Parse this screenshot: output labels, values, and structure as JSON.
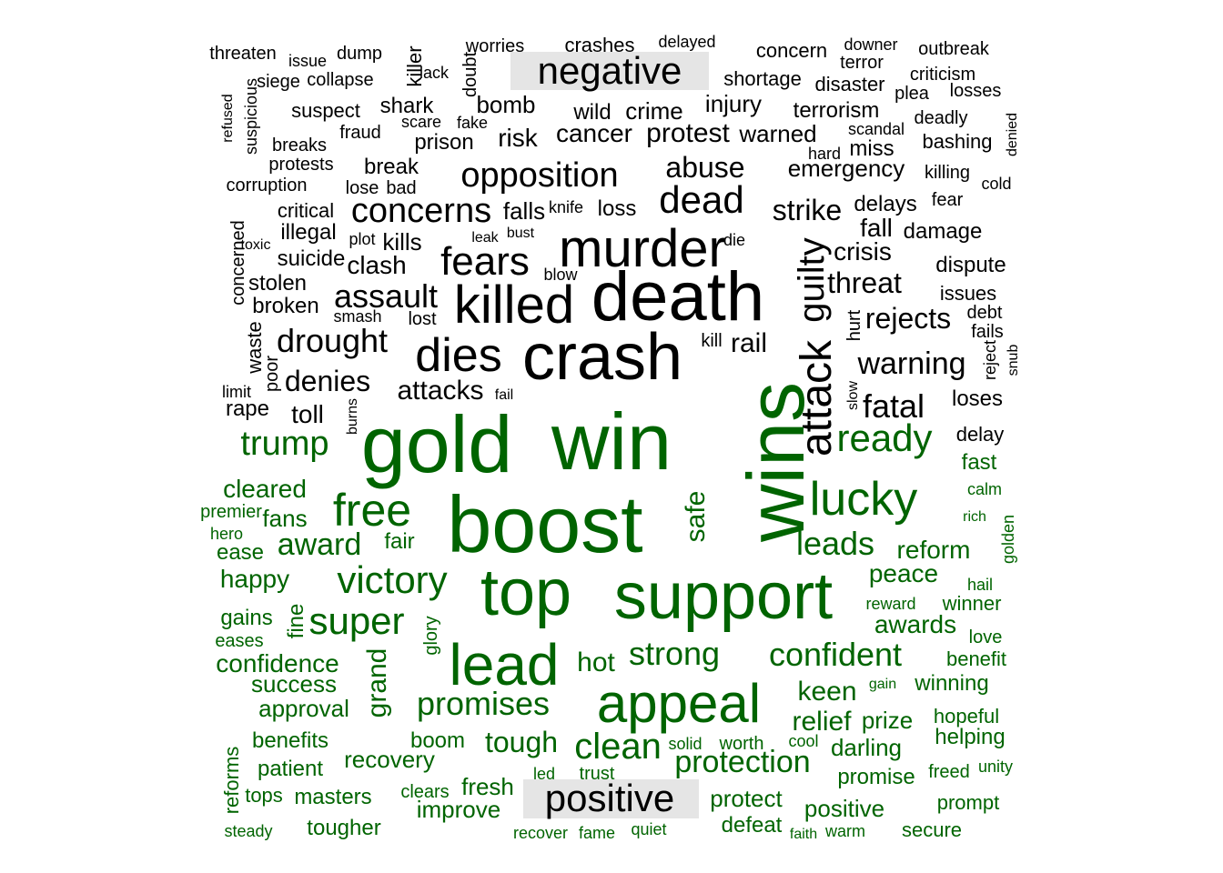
{
  "group_labels": {
    "negative": "negative",
    "positive": "positive"
  },
  "colors": {
    "negative": "#000000",
    "positive": "#006400",
    "label_box": "#e5e5e5",
    "background": "#ffffff"
  },
  "words": [
    {
      "t": "threaten",
      "g": "n"
    },
    {
      "t": "issue",
      "g": "n"
    },
    {
      "t": "dump",
      "g": "n"
    },
    {
      "t": "killer",
      "g": "n"
    },
    {
      "t": "worries",
      "g": "n"
    },
    {
      "t": "crashes",
      "g": "n"
    },
    {
      "t": "delayed",
      "g": "n"
    },
    {
      "t": "concern",
      "g": "n"
    },
    {
      "t": "downer",
      "g": "n"
    },
    {
      "t": "outbreak",
      "g": "n"
    },
    {
      "t": "terror",
      "g": "n"
    },
    {
      "t": "lack",
      "g": "n"
    },
    {
      "t": "doubt",
      "g": "n"
    },
    {
      "t": "criticism",
      "g": "n"
    },
    {
      "t": "siege",
      "g": "n"
    },
    {
      "t": "collapse",
      "g": "n"
    },
    {
      "t": "shortage",
      "g": "n"
    },
    {
      "t": "disaster",
      "g": "n"
    },
    {
      "t": "suspicious",
      "g": "n"
    },
    {
      "t": "refused",
      "g": "n"
    },
    {
      "t": "plea",
      "g": "n"
    },
    {
      "t": "losses",
      "g": "n"
    },
    {
      "t": "shark",
      "g": "n"
    },
    {
      "t": "bomb",
      "g": "n"
    },
    {
      "t": "injury",
      "g": "n"
    },
    {
      "t": "suspect",
      "g": "n"
    },
    {
      "t": "wild",
      "g": "n"
    },
    {
      "t": "crime",
      "g": "n"
    },
    {
      "t": "terrorism",
      "g": "n"
    },
    {
      "t": "deadly",
      "g": "n"
    },
    {
      "t": "scare",
      "g": "n"
    },
    {
      "t": "fake",
      "g": "n"
    },
    {
      "t": "fraud",
      "g": "n"
    },
    {
      "t": "scandal",
      "g": "n"
    },
    {
      "t": "denied",
      "g": "n"
    },
    {
      "t": "prison",
      "g": "n"
    },
    {
      "t": "risk",
      "g": "n"
    },
    {
      "t": "cancer",
      "g": "n"
    },
    {
      "t": "protest",
      "g": "n"
    },
    {
      "t": "warned",
      "g": "n"
    },
    {
      "t": "breaks",
      "g": "n"
    },
    {
      "t": "miss",
      "g": "n"
    },
    {
      "t": "bashing",
      "g": "n"
    },
    {
      "t": "hard",
      "g": "n"
    },
    {
      "t": "protests",
      "g": "n"
    },
    {
      "t": "break",
      "g": "n"
    },
    {
      "t": "abuse",
      "g": "n"
    },
    {
      "t": "emergency",
      "g": "n"
    },
    {
      "t": "killing",
      "g": "n"
    },
    {
      "t": "opposition",
      "g": "n"
    },
    {
      "t": "corruption",
      "g": "n"
    },
    {
      "t": "lose",
      "g": "n"
    },
    {
      "t": "bad",
      "g": "n"
    },
    {
      "t": "cold",
      "g": "n"
    },
    {
      "t": "dead",
      "g": "n"
    },
    {
      "t": "fear",
      "g": "n"
    },
    {
      "t": "delays",
      "g": "n"
    },
    {
      "t": "critical",
      "g": "n"
    },
    {
      "t": "concerns",
      "g": "n"
    },
    {
      "t": "falls",
      "g": "n"
    },
    {
      "t": "knife",
      "g": "n"
    },
    {
      "t": "loss",
      "g": "n"
    },
    {
      "t": "strike",
      "g": "n"
    },
    {
      "t": "concerned",
      "g": "n"
    },
    {
      "t": "illegal",
      "g": "n"
    },
    {
      "t": "bust",
      "g": "n"
    },
    {
      "t": "fall",
      "g": "n"
    },
    {
      "t": "damage",
      "g": "n"
    },
    {
      "t": "toxic",
      "g": "n"
    },
    {
      "t": "plot",
      "g": "n"
    },
    {
      "t": "leak",
      "g": "n"
    },
    {
      "t": "kills",
      "g": "n"
    },
    {
      "t": "murder",
      "g": "n"
    },
    {
      "t": "die",
      "g": "n"
    },
    {
      "t": "crisis",
      "g": "n"
    },
    {
      "t": "fears",
      "g": "n"
    },
    {
      "t": "suicide",
      "g": "n"
    },
    {
      "t": "clash",
      "g": "n"
    },
    {
      "t": "dispute",
      "g": "n"
    },
    {
      "t": "blow",
      "g": "n"
    },
    {
      "t": "stolen",
      "g": "n"
    },
    {
      "t": "guilty",
      "g": "n"
    },
    {
      "t": "threat",
      "g": "n"
    },
    {
      "t": "issues",
      "g": "n"
    },
    {
      "t": "death",
      "g": "n"
    },
    {
      "t": "assault",
      "g": "n"
    },
    {
      "t": "killed",
      "g": "n"
    },
    {
      "t": "broken",
      "g": "n"
    },
    {
      "t": "smash",
      "g": "n"
    },
    {
      "t": "lost",
      "g": "n"
    },
    {
      "t": "hurt",
      "g": "n"
    },
    {
      "t": "rejects",
      "g": "n"
    },
    {
      "t": "debt",
      "g": "n"
    },
    {
      "t": "fails",
      "g": "n"
    },
    {
      "t": "waste",
      "g": "n"
    },
    {
      "t": "drought",
      "g": "n"
    },
    {
      "t": "kill",
      "g": "n"
    },
    {
      "t": "rail",
      "g": "n"
    },
    {
      "t": "reject",
      "g": "n"
    },
    {
      "t": "snub",
      "g": "n"
    },
    {
      "t": "crash",
      "g": "n"
    },
    {
      "t": "dies",
      "g": "n"
    },
    {
      "t": "poor",
      "g": "n"
    },
    {
      "t": "warning",
      "g": "n"
    },
    {
      "t": "limit",
      "g": "n"
    },
    {
      "t": "denies",
      "g": "n"
    },
    {
      "t": "attack",
      "g": "n"
    },
    {
      "t": "slow",
      "g": "n"
    },
    {
      "t": "attacks",
      "g": "n"
    },
    {
      "t": "fail",
      "g": "n"
    },
    {
      "t": "loses",
      "g": "n"
    },
    {
      "t": "rape",
      "g": "n"
    },
    {
      "t": "fatal",
      "g": "n"
    },
    {
      "t": "toll",
      "g": "n"
    },
    {
      "t": "burns",
      "g": "n"
    },
    {
      "t": "gold",
      "g": "p"
    },
    {
      "t": "win",
      "g": "p"
    },
    {
      "t": "wins",
      "g": "p"
    },
    {
      "t": "delay",
      "g": "n"
    },
    {
      "t": "trump",
      "g": "p"
    },
    {
      "t": "ready",
      "g": "p"
    },
    {
      "t": "fast",
      "g": "p"
    },
    {
      "t": "cleared",
      "g": "p"
    },
    {
      "t": "calm",
      "g": "p"
    },
    {
      "t": "premier",
      "g": "p"
    },
    {
      "t": "lucky",
      "g": "p"
    },
    {
      "t": "free",
      "g": "p"
    },
    {
      "t": "boost",
      "g": "p"
    },
    {
      "t": "safe",
      "g": "p"
    },
    {
      "t": "rich",
      "g": "p"
    },
    {
      "t": "hero",
      "g": "p"
    },
    {
      "t": "fans",
      "g": "p"
    },
    {
      "t": "golden",
      "g": "p"
    },
    {
      "t": "award",
      "g": "p"
    },
    {
      "t": "fair",
      "g": "p"
    },
    {
      "t": "leads",
      "g": "p"
    },
    {
      "t": "reform",
      "g": "p"
    },
    {
      "t": "ease",
      "g": "p"
    },
    {
      "t": "peace",
      "g": "p"
    },
    {
      "t": "hail",
      "g": "p"
    },
    {
      "t": "happy",
      "g": "p"
    },
    {
      "t": "victory",
      "g": "p"
    },
    {
      "t": "top",
      "g": "p"
    },
    {
      "t": "support",
      "g": "p"
    },
    {
      "t": "reward",
      "g": "p"
    },
    {
      "t": "winner",
      "g": "p"
    },
    {
      "t": "gains",
      "g": "p"
    },
    {
      "t": "fine",
      "g": "p"
    },
    {
      "t": "super",
      "g": "p"
    },
    {
      "t": "awards",
      "g": "p"
    },
    {
      "t": "love",
      "g": "p"
    },
    {
      "t": "eases",
      "g": "p"
    },
    {
      "t": "glory",
      "g": "p"
    },
    {
      "t": "confidence",
      "g": "p"
    },
    {
      "t": "lead",
      "g": "p"
    },
    {
      "t": "strong",
      "g": "p"
    },
    {
      "t": "confident",
      "g": "p"
    },
    {
      "t": "benefit",
      "g": "p"
    },
    {
      "t": "hot",
      "g": "p"
    },
    {
      "t": "success",
      "g": "p"
    },
    {
      "t": "gain",
      "g": "p"
    },
    {
      "t": "winning",
      "g": "p"
    },
    {
      "t": "grand",
      "g": "p"
    },
    {
      "t": "keen",
      "g": "p"
    },
    {
      "t": "approval",
      "g": "p"
    },
    {
      "t": "promises",
      "g": "p"
    },
    {
      "t": "appeal",
      "g": "p"
    },
    {
      "t": "hopeful",
      "g": "p"
    },
    {
      "t": "relief",
      "g": "p"
    },
    {
      "t": "prize",
      "g": "p"
    },
    {
      "t": "benefits",
      "g": "p"
    },
    {
      "t": "boom",
      "g": "p"
    },
    {
      "t": "tough",
      "g": "p"
    },
    {
      "t": "helping",
      "g": "p"
    },
    {
      "t": "solid",
      "g": "p"
    },
    {
      "t": "worth",
      "g": "p"
    },
    {
      "t": "cool",
      "g": "p"
    },
    {
      "t": "clean",
      "g": "p"
    },
    {
      "t": "darling",
      "g": "p"
    },
    {
      "t": "recovery",
      "g": "p"
    },
    {
      "t": "reforms",
      "g": "p"
    },
    {
      "t": "patient",
      "g": "p"
    },
    {
      "t": "protection",
      "g": "p"
    },
    {
      "t": "freed",
      "g": "p"
    },
    {
      "t": "unity",
      "g": "p"
    },
    {
      "t": "led",
      "g": "p"
    },
    {
      "t": "trust",
      "g": "p"
    },
    {
      "t": "promise",
      "g": "p"
    },
    {
      "t": "clears",
      "g": "p"
    },
    {
      "t": "fresh",
      "g": "p"
    },
    {
      "t": "tops",
      "g": "p"
    },
    {
      "t": "masters",
      "g": "p"
    },
    {
      "t": "protect",
      "g": "p"
    },
    {
      "t": "improve",
      "g": "p"
    },
    {
      "t": "positive",
      "g": "p"
    },
    {
      "t": "prompt",
      "g": "p"
    },
    {
      "t": "defeat",
      "g": "p"
    },
    {
      "t": "tougher",
      "g": "p"
    },
    {
      "t": "steady",
      "g": "p"
    },
    {
      "t": "recover",
      "g": "p"
    },
    {
      "t": "fame",
      "g": "p"
    },
    {
      "t": "quiet",
      "g": "p"
    },
    {
      "t": "faith",
      "g": "p"
    },
    {
      "t": "warm",
      "g": "p"
    },
    {
      "t": "secure",
      "g": "p"
    }
  ]
}
